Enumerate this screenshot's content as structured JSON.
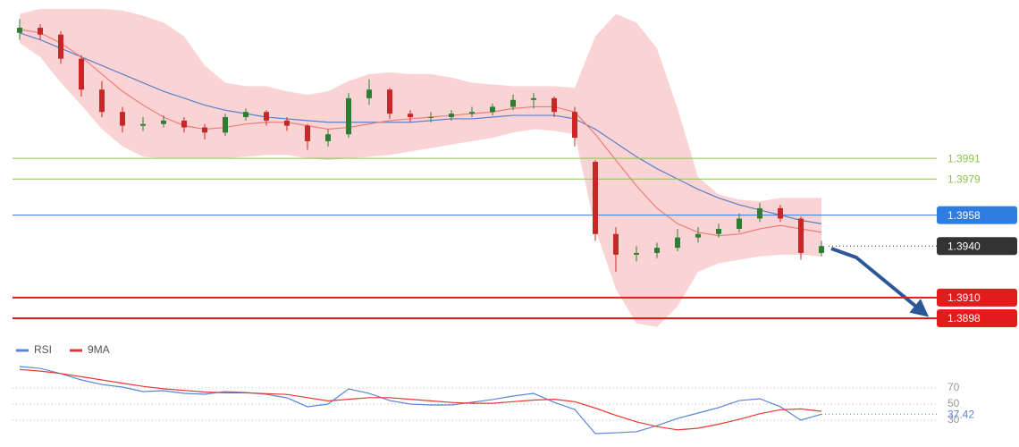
{
  "chart_data": [
    {
      "type": "candlestick",
      "ylim": [
        1.3885,
        1.408
      ],
      "up_color": "#2e7d32",
      "down_color": "#c62828",
      "open": [
        1.4064,
        1.4067,
        1.4063,
        1.4049,
        1.4031,
        1.4018,
        1.401,
        1.4011,
        1.4013,
        1.4009,
        1.4006,
        1.4015,
        1.4018,
        1.4013,
        1.401,
        1.4001,
        1.4005,
        1.4026,
        1.4031,
        1.4017,
        1.4015,
        1.4015,
        1.4017,
        1.4018,
        1.4021,
        1.4025,
        1.4026,
        1.4018,
        1.3989,
        1.3947,
        1.3935,
        1.3936,
        1.3939,
        1.3945,
        1.3947,
        1.395,
        1.3956,
        1.3962,
        1.3956,
        1.3936
      ],
      "high": [
        1.4072,
        1.4069,
        1.4065,
        1.4051,
        1.4036,
        1.4021,
        1.4015,
        1.4016,
        1.4015,
        1.4011,
        1.4017,
        1.402,
        1.4019,
        1.4015,
        1.4011,
        1.4008,
        1.4029,
        1.4037,
        1.4032,
        1.4019,
        1.4018,
        1.4019,
        1.4021,
        1.4023,
        1.4028,
        1.4029,
        1.4027,
        1.4021,
        1.399,
        1.3951,
        1.394,
        1.3942,
        1.395,
        1.3951,
        1.3953,
        1.3959,
        1.3965,
        1.3964,
        1.3957,
        1.3943
      ],
      "low": [
        1.406,
        1.406,
        1.4046,
        1.4027,
        1.4015,
        1.4006,
        1.4007,
        1.4009,
        1.4006,
        1.4002,
        1.4004,
        1.4013,
        1.401,
        1.4007,
        1.3996,
        1.3998,
        1.4003,
        1.4022,
        1.4014,
        1.4012,
        1.4012,
        1.4013,
        1.4015,
        1.4016,
        1.4019,
        1.402,
        1.4015,
        1.3998,
        1.3943,
        1.3925,
        1.3931,
        1.3933,
        1.3937,
        1.3942,
        1.3945,
        1.3948,
        1.3954,
        1.3954,
        1.3932,
        1.3934
      ],
      "close": [
        1.4067,
        1.4063,
        1.4049,
        1.4031,
        1.4018,
        1.401,
        1.4011,
        1.4013,
        1.4009,
        1.4006,
        1.4015,
        1.4018,
        1.4013,
        1.401,
        1.4001,
        1.4005,
        1.4026,
        1.4031,
        1.4017,
        1.4015,
        1.4015,
        1.4017,
        1.4018,
        1.4021,
        1.4025,
        1.4026,
        1.4018,
        1.4003,
        1.3947,
        1.3935,
        1.3936,
        1.3939,
        1.3945,
        1.3947,
        1.395,
        1.3956,
        1.3962,
        1.3956,
        1.3936,
        1.394
      ],
      "band": {
        "color": "#f8c6c6",
        "upper": [
          1.4075,
          1.4078,
          1.4078,
          1.4078,
          1.4078,
          1.4077,
          1.4074,
          1.407,
          1.4062,
          1.4045,
          1.4035,
          1.4033,
          1.4033,
          1.403,
          1.4028,
          1.403,
          1.4036,
          1.404,
          1.4041,
          1.404,
          1.404,
          1.4038,
          1.4035,
          1.4034,
          1.4033,
          1.4033,
          1.4033,
          1.4032,
          1.4062,
          1.4075,
          1.407,
          1.4055,
          1.402,
          1.398,
          1.397,
          1.3967,
          1.3966,
          1.3968,
          1.3968,
          1.3968
        ],
        "lower": [
          1.4058,
          1.405,
          1.4035,
          1.4022,
          1.4008,
          1.3998,
          1.3992,
          1.3991,
          1.3991,
          1.3991,
          1.3991,
          1.3992,
          1.3993,
          1.3993,
          1.3991,
          1.399,
          1.3991,
          1.3992,
          1.3993,
          1.3995,
          1.3997,
          1.3999,
          1.4001,
          1.4003,
          1.4006,
          1.4008,
          1.4007,
          1.4005,
          1.395,
          1.3915,
          1.3895,
          1.3893,
          1.3905,
          1.3925,
          1.393,
          1.3932,
          1.3934,
          1.3935,
          1.3935,
          1.3934
        ]
      },
      "overlays": [
        {
          "color": "#5a7fc9",
          "values": [
            1.4064,
            1.406,
            1.4055,
            1.405,
            1.4045,
            1.404,
            1.4035,
            1.403,
            1.4026,
            1.4022,
            1.4019,
            1.4017,
            1.4015,
            1.4014,
            1.4013,
            1.4012,
            1.4012,
            1.4012,
            1.4012,
            1.4012,
            1.4013,
            1.4014,
            1.4014,
            1.4015,
            1.4016,
            1.4016,
            1.4016,
            1.4014,
            1.4008,
            1.4,
            1.3992,
            1.3985,
            1.3979,
            1.3973,
            1.3968,
            1.3964,
            1.3961,
            1.3958,
            1.3955,
            1.3953
          ]
        },
        {
          "color": "#ee7d7d",
          "values": [
            1.4066,
            1.4064,
            1.4058,
            1.405,
            1.404,
            1.403,
            1.4022,
            1.4015,
            1.401,
            1.4008,
            1.4009,
            1.4011,
            1.4012,
            1.4012,
            1.401,
            1.4008,
            1.4009,
            1.4011,
            1.4013,
            1.4014,
            1.4015,
            1.4016,
            1.4017,
            1.4018,
            1.402,
            1.4021,
            1.4021,
            1.4018,
            1.4005,
            1.399,
            1.3975,
            1.3962,
            1.3953,
            1.3948,
            1.3946,
            1.3947,
            1.395,
            1.3952,
            1.395,
            1.3948
          ]
        }
      ],
      "levels": [
        {
          "value": 1.3991,
          "color": "#8bc34a"
        },
        {
          "value": 1.3979,
          "color": "#8bc34a"
        },
        {
          "value": 1.3958,
          "color": "#2f7de1",
          "badge": true
        },
        {
          "value": 1.394,
          "label": "1.3940",
          "color": "#333333",
          "badge": true,
          "line": "dotted"
        },
        {
          "value": 1.391,
          "label": "1.3910",
          "color": "#e31b1b",
          "badge": true,
          "width": 2
        },
        {
          "value": 1.3898,
          "color": "#e31b1b",
          "badge": true,
          "width": 2
        }
      ]
    },
    {
      "type": "line",
      "ylim": [
        0,
        100
      ],
      "yticks": [
        30,
        50,
        70
      ],
      "series": [
        {
          "name": "RSI",
          "color": "#5b86d6",
          "last_value_label": true,
          "values": [
            96.7,
            94.4,
            87.8,
            80,
            74.4,
            71.1,
            65.6,
            66.7,
            63.3,
            62.2,
            65.6,
            64.4,
            62.2,
            57.8,
            46.7,
            50,
            68.9,
            63.3,
            54.4,
            50,
            48.9,
            48.9,
            52.2,
            55.6,
            60,
            63.3,
            52.2,
            43.3,
            13.3,
            14.4,
            15.6,
            23.3,
            32.2,
            38.9,
            45.6,
            54.4,
            56.7,
            46.7,
            30,
            37.42
          ]
        },
        {
          "name": "9MA",
          "color": "#e53935",
          "values": [
            93,
            91,
            88,
            84,
            80,
            76,
            72,
            69,
            67,
            65,
            64,
            64,
            63,
            62,
            58,
            54,
            56,
            58,
            58,
            56,
            54,
            52,
            51,
            51,
            53,
            55,
            56,
            53,
            45,
            36,
            28,
            22,
            18,
            20,
            25,
            31,
            38,
            43,
            44,
            41
          ]
        }
      ]
    }
  ]
}
